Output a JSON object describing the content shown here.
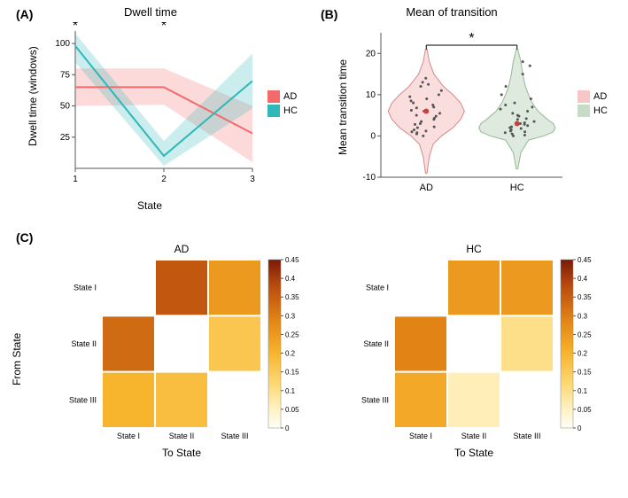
{
  "global": {
    "font_family": "Arial, sans-serif",
    "background_color": "#ffffff",
    "panel_label_fontsize": 14,
    "title_fontsize": 13,
    "axis_label_fontsize": 12,
    "tick_label_fontsize": 10
  },
  "panelA": {
    "label": "(A)",
    "title": "Dwell time",
    "type": "line",
    "xlabel": "State",
    "ylabel": "Dwell time (windows)",
    "xlim": [
      1,
      3
    ],
    "ylim": [
      0,
      110
    ],
    "xticks": [
      1,
      2,
      3
    ],
    "yticks": [
      25,
      50,
      75,
      100
    ],
    "series": {
      "AD": {
        "color": "#f46a6a",
        "fill_opacity": 0.25,
        "line_width": 2,
        "values": [
          65,
          65,
          28
        ],
        "ribbon_lo": [
          50,
          51,
          5
        ],
        "ribbon_hi": [
          80,
          80,
          50
        ]
      },
      "HC": {
        "color": "#2fb8b8",
        "fill_opacity": 0.25,
        "line_width": 2,
        "values": [
          98,
          10,
          70
        ],
        "ribbon_lo": [
          85,
          2,
          48
        ],
        "ribbon_hi": [
          108,
          22,
          92
        ]
      }
    },
    "significance_marks": [
      {
        "x": 1,
        "symbol": "*"
      },
      {
        "x": 2,
        "symbol": "*"
      }
    ],
    "legend": {
      "items": [
        {
          "label": "AD",
          "color": "#f46a6a"
        },
        {
          "label": "HC",
          "color": "#2fb8b8"
        }
      ]
    },
    "axis_color": "#555555",
    "grid": false
  },
  "panelB": {
    "label": "(B)",
    "title": "Mean of transition",
    "type": "violin",
    "xlabel": "",
    "ylabel": "Mean transition time",
    "categories": [
      "AD",
      "HC"
    ],
    "ylim": [
      -10,
      25
    ],
    "yticks": [
      -10,
      0,
      10,
      20
    ],
    "groups": {
      "AD": {
        "fill_color": "#f7c7c7",
        "fill_opacity": 0.6,
        "stroke_color": "#d48a8a",
        "median_marker_color": "#d33a3a",
        "median": 6,
        "points": [
          0,
          0.5,
          0.8,
          1,
          1.2,
          1.5,
          2,
          2.2,
          2.8,
          3,
          3.5,
          4,
          4.3,
          4.8,
          5,
          5.5,
          6,
          6.2,
          6.8,
          7,
          7.5,
          8,
          8.5,
          9,
          9.5,
          10,
          11,
          12,
          12.5,
          13,
          14
        ],
        "violin_profile": [
          [
            -9,
            0.02
          ],
          [
            -5,
            0.08
          ],
          [
            -2,
            0.18
          ],
          [
            0,
            0.4
          ],
          [
            2,
            0.7
          ],
          [
            4,
            0.9
          ],
          [
            6,
            1.0
          ],
          [
            8,
            0.9
          ],
          [
            10,
            0.7
          ],
          [
            12,
            0.45
          ],
          [
            15,
            0.2
          ],
          [
            18,
            0.08
          ],
          [
            21,
            0.02
          ]
        ]
      },
      "HC": {
        "fill_color": "#c6dcc6",
        "fill_opacity": 0.6,
        "stroke_color": "#96b896",
        "median_marker_color": "#d33a3a",
        "median": 3,
        "points": [
          0,
          0.2,
          0.5,
          0.8,
          1,
          1.2,
          1.5,
          1.8,
          2,
          2.2,
          2.5,
          2.8,
          3,
          3.2,
          3.5,
          4,
          4.2,
          4.8,
          5,
          5.5,
          6,
          6.5,
          7,
          7.5,
          8,
          9,
          10,
          12,
          15,
          17,
          18
        ],
        "violin_profile": [
          [
            -8,
            0.02
          ],
          [
            -4,
            0.1
          ],
          [
            -1,
            0.3
          ],
          [
            0,
            0.7
          ],
          [
            1,
            0.95
          ],
          [
            2,
            1.0
          ],
          [
            3,
            0.95
          ],
          [
            4,
            0.8
          ],
          [
            6,
            0.55
          ],
          [
            8,
            0.4
          ],
          [
            10,
            0.3
          ],
          [
            12,
            0.22
          ],
          [
            15,
            0.15
          ],
          [
            18,
            0.1
          ],
          [
            21,
            0.02
          ]
        ]
      }
    },
    "jitter_color": "#555555",
    "jitter_radius": 1.5,
    "significance_bar": {
      "y": 22,
      "symbol": "*",
      "between": [
        "AD",
        "HC"
      ]
    },
    "legend": {
      "items": [
        {
          "label": "AD",
          "color": "#f7c7c7"
        },
        {
          "label": "HC",
          "color": "#c6dcc6"
        }
      ]
    },
    "axis_color": "#555555"
  },
  "panelC": {
    "label": "(C)",
    "type": "heatmap",
    "shared_ylabel": "From State",
    "shared_xlabel": "To State",
    "states": [
      "State I",
      "State II",
      "State III"
    ],
    "colorscale": {
      "min": 0,
      "max": 0.45,
      "ticks": [
        0,
        0.05,
        0.1,
        0.15,
        0.2,
        0.25,
        0.3,
        0.35,
        0.4,
        0.45
      ],
      "stops": [
        [
          0.0,
          "#fffef6"
        ],
        [
          0.1,
          "#fff3c9"
        ],
        [
          0.25,
          "#fddb7a"
        ],
        [
          0.45,
          "#f7b32b"
        ],
        [
          0.65,
          "#e08214"
        ],
        [
          0.85,
          "#b84a0e"
        ],
        [
          1.0,
          "#7a1a06"
        ]
      ]
    },
    "cell_border_color": "#ffffff",
    "cell_border_width": 2,
    "subpanels": {
      "AD": {
        "title": "AD",
        "matrix": [
          [
            0.0,
            0.36,
            0.25
          ],
          [
            0.33,
            0.0,
            0.16
          ],
          [
            0.2,
            0.18,
            0.0
          ]
        ]
      },
      "HC": {
        "title": "HC",
        "matrix": [
          [
            0.0,
            0.25,
            0.25
          ],
          [
            0.29,
            0.0,
            0.1
          ],
          [
            0.22,
            0.06,
            0.0
          ]
        ]
      }
    }
  }
}
